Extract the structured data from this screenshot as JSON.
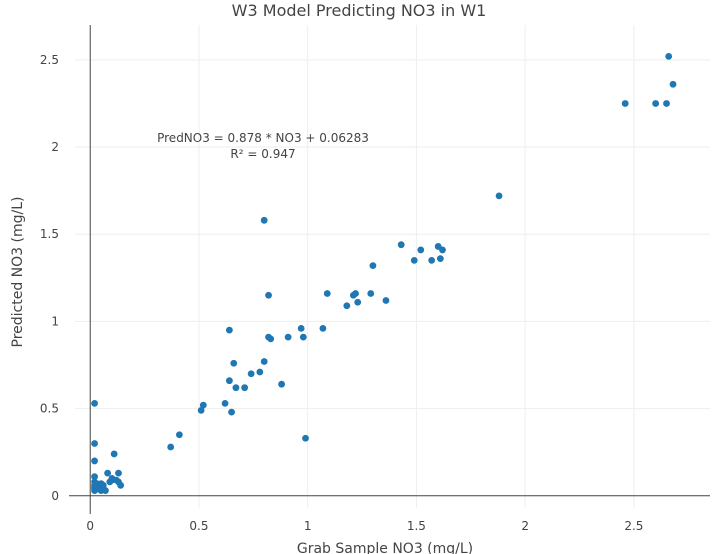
{
  "chart_data": {
    "type": "scatter",
    "title": "W3 Model Predicting NO3 in W1",
    "xlabel": "Grab Sample NO3 (mg/L)",
    "ylabel": "Predicted NO3 (mg/L)",
    "xlim": [
      -0.07,
      2.85
    ],
    "ylim": [
      -0.07,
      2.7
    ],
    "x_ticks": [
      0,
      0.5,
      1,
      1.5,
      2,
      2.5
    ],
    "x_tick_labels": [
      "0",
      "0.5",
      "1",
      "1.5",
      "2",
      "2.5"
    ],
    "y_ticks": [
      0,
      0.5,
      1,
      1.5,
      2,
      2.5
    ],
    "y_tick_labels": [
      "0",
      "0.5",
      "1",
      "1.5",
      "2",
      "2.5"
    ],
    "grid": true,
    "marker_color": "#1f77b4",
    "annotation": {
      "line1": "PredNO3  =  0.878 * NO3 + 0.06283",
      "line2": "R² =  0.947",
      "x": 0.68,
      "y": 2.0
    },
    "points": [
      [
        0.02,
        0.53
      ],
      [
        0.02,
        0.3
      ],
      [
        0.02,
        0.2
      ],
      [
        0.02,
        0.11
      ],
      [
        0.02,
        0.08
      ],
      [
        0.02,
        0.06
      ],
      [
        0.02,
        0.05
      ],
      [
        0.02,
        0.04
      ],
      [
        0.02,
        0.03
      ],
      [
        0.03,
        0.07
      ],
      [
        0.03,
        0.04
      ],
      [
        0.05,
        0.07
      ],
      [
        0.05,
        0.05
      ],
      [
        0.05,
        0.03
      ],
      [
        0.06,
        0.04
      ],
      [
        0.06,
        0.06
      ],
      [
        0.07,
        0.03
      ],
      [
        0.08,
        0.13
      ],
      [
        0.09,
        0.08
      ],
      [
        0.1,
        0.09
      ],
      [
        0.1,
        0.1
      ],
      [
        0.11,
        0.24
      ],
      [
        0.12,
        0.09
      ],
      [
        0.13,
        0.13
      ],
      [
        0.13,
        0.08
      ],
      [
        0.14,
        0.06
      ],
      [
        0.37,
        0.28
      ],
      [
        0.41,
        0.35
      ],
      [
        0.51,
        0.49
      ],
      [
        0.52,
        0.52
      ],
      [
        0.62,
        0.53
      ],
      [
        0.64,
        0.66
      ],
      [
        0.64,
        0.95
      ],
      [
        0.65,
        0.48
      ],
      [
        0.66,
        0.76
      ],
      [
        0.67,
        0.62
      ],
      [
        0.71,
        0.62
      ],
      [
        0.74,
        0.7
      ],
      [
        0.78,
        0.71
      ],
      [
        0.8,
        0.77
      ],
      [
        0.8,
        1.58
      ],
      [
        0.82,
        1.15
      ],
      [
        0.82,
        0.91
      ],
      [
        0.83,
        0.9
      ],
      [
        0.88,
        0.64
      ],
      [
        0.91,
        0.91
      ],
      [
        0.97,
        0.96
      ],
      [
        0.98,
        0.91
      ],
      [
        0.99,
        0.33
      ],
      [
        1.07,
        0.96
      ],
      [
        1.09,
        1.16
      ],
      [
        1.18,
        1.09
      ],
      [
        1.21,
        1.15
      ],
      [
        1.22,
        1.16
      ],
      [
        1.23,
        1.11
      ],
      [
        1.29,
        1.16
      ],
      [
        1.3,
        1.32
      ],
      [
        1.36,
        1.12
      ],
      [
        1.43,
        1.44
      ],
      [
        1.49,
        1.35
      ],
      [
        1.52,
        1.41
      ],
      [
        1.57,
        1.35
      ],
      [
        1.6,
        1.43
      ],
      [
        1.61,
        1.36
      ],
      [
        1.62,
        1.41
      ],
      [
        1.88,
        1.72
      ],
      [
        2.46,
        2.25
      ],
      [
        2.6,
        2.25
      ],
      [
        2.65,
        2.25
      ],
      [
        2.66,
        2.52
      ],
      [
        2.68,
        2.36
      ]
    ]
  }
}
